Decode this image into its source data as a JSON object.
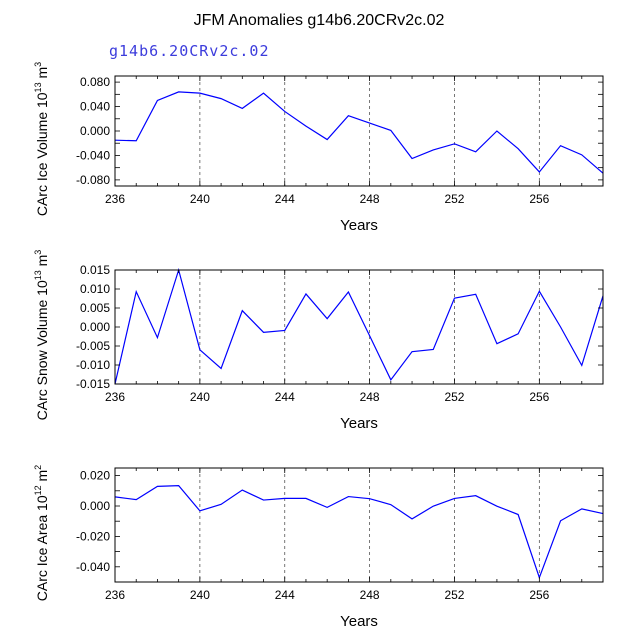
{
  "title": "JFM Anomalies g14b6.20CRv2c.02",
  "subtitle": "g14b6.20CRv2c.02",
  "line_color": "#0000ff",
  "chart_data": [
    {
      "type": "line",
      "name": "ice-volume",
      "ylabel": "CArc Ice Volume 10",
      "ylabel_exp": "13",
      "ylabel_unit": " m",
      "ylabel_unit_exp": "3",
      "xlabel": "Years",
      "xlim": [
        236,
        259
      ],
      "ylim": [
        -0.09,
        0.09
      ],
      "x_ticks": [
        236,
        240,
        244,
        248,
        252,
        256
      ],
      "x_tick_labels": [
        "236",
        "240",
        "244",
        "248",
        "252",
        "256"
      ],
      "y_ticks": [
        -0.08,
        -0.06,
        -0.04,
        -0.02,
        0.0,
        0.02,
        0.04,
        0.06,
        0.08
      ],
      "y_tick_labels": [
        "-0.080",
        "",
        "-0.040",
        "",
        "0.000",
        "",
        "0.040",
        "",
        "0.080"
      ],
      "x": [
        236,
        237,
        238,
        239,
        240,
        241,
        242,
        243,
        244,
        245,
        246,
        247,
        248,
        249,
        250,
        251,
        252,
        253,
        254,
        255,
        256,
        257,
        258,
        259
      ],
      "values": [
        -0.015,
        -0.016,
        0.05,
        0.064,
        0.062,
        0.053,
        0.037,
        0.062,
        0.032,
        0.008,
        -0.014,
        0.025,
        0.013,
        0.001,
        -0.045,
        -0.031,
        -0.021,
        -0.034,
        0.0,
        -0.029,
        -0.067,
        -0.024,
        -0.039,
        -0.069
      ]
    },
    {
      "type": "line",
      "name": "snow-volume",
      "ylabel": "CArc Snow Volume 10",
      "ylabel_exp": "13",
      "ylabel_unit": " m",
      "ylabel_unit_exp": "3",
      "xlabel": "Years",
      "xlim": [
        236,
        259
      ],
      "ylim": [
        -0.015,
        0.015
      ],
      "x_ticks": [
        236,
        240,
        244,
        248,
        252,
        256
      ],
      "x_tick_labels": [
        "236",
        "240",
        "244",
        "248",
        "252",
        "256"
      ],
      "y_ticks": [
        -0.015,
        -0.01,
        -0.005,
        0.0,
        0.005,
        0.01,
        0.015
      ],
      "y_tick_labels": [
        "-0.015",
        "-0.010",
        "-0.005",
        "0.000",
        "0.005",
        "0.010",
        "0.015"
      ],
      "x": [
        236,
        237,
        238,
        239,
        240,
        241,
        242,
        243,
        244,
        245,
        246,
        247,
        248,
        249,
        250,
        251,
        252,
        253,
        254,
        255,
        256,
        257,
        258,
        259
      ],
      "values": [
        -0.015,
        0.0093,
        -0.0028,
        0.015,
        -0.006,
        -0.0109,
        0.0043,
        -0.0014,
        -0.0009,
        0.0087,
        0.0022,
        0.0092,
        -0.0023,
        -0.0139,
        -0.0065,
        -0.0059,
        0.0076,
        0.0086,
        -0.0044,
        -0.0018,
        0.0094,
        0.0,
        -0.0101,
        0.0082
      ]
    },
    {
      "type": "line",
      "name": "ice-area",
      "ylabel": "CArc Ice Area 10",
      "ylabel_exp": "12",
      "ylabel_unit": " m",
      "ylabel_unit_exp": "2",
      "xlabel": "Years",
      "xlim": [
        236,
        259
      ],
      "ylim": [
        -0.05,
        0.025
      ],
      "x_ticks": [
        236,
        240,
        244,
        248,
        252,
        256
      ],
      "x_tick_labels": [
        "236",
        "240",
        "244",
        "248",
        "252",
        "256"
      ],
      "y_ticks": [
        -0.05,
        -0.04,
        -0.03,
        -0.02,
        -0.01,
        0.0,
        0.01,
        0.02
      ],
      "y_tick_labels": [
        "",
        "-0.040",
        "",
        "-0.020",
        "",
        "0.000",
        "",
        "0.020"
      ],
      "x": [
        236,
        237,
        238,
        239,
        240,
        241,
        242,
        243,
        244,
        245,
        246,
        247,
        248,
        249,
        250,
        251,
        252,
        253,
        254,
        255,
        256,
        257,
        258,
        259
      ],
      "values": [
        0.006,
        0.0042,
        0.0129,
        0.0134,
        -0.0032,
        0.0011,
        0.0105,
        0.0039,
        0.005,
        0.005,
        -0.0009,
        0.0062,
        0.0048,
        0.0009,
        -0.0085,
        -0.0001,
        0.005,
        0.0068,
        -0.0001,
        -0.0056,
        -0.0471,
        -0.0097,
        -0.0019,
        -0.005
      ]
    }
  ]
}
